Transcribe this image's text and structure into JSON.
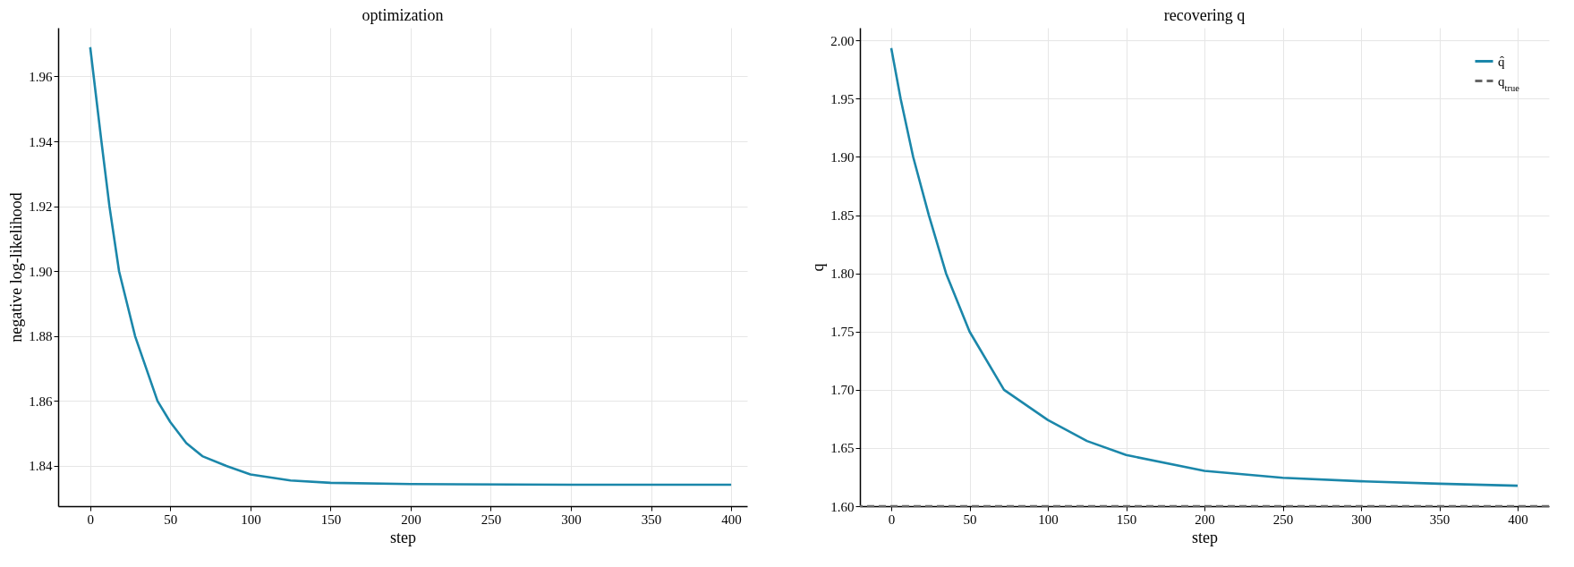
{
  "chart_data": [
    {
      "type": "line",
      "title": "optimization",
      "xlabel": "step",
      "ylabel": "negative log-likelihood",
      "x": [
        0,
        7,
        12,
        18,
        28,
        42,
        50,
        60,
        70,
        85,
        100,
        125,
        150,
        200,
        300,
        400
      ],
      "series": [
        {
          "color": "#1b87aa",
          "values": [
            1.969,
            1.94,
            1.92,
            1.9,
            1.88,
            1.86,
            1.8535,
            1.847,
            1.843,
            1.84,
            1.8374,
            1.8355,
            1.8348,
            1.8344,
            1.8342,
            1.8342
          ]
        }
      ],
      "xlim": [
        -20,
        410
      ],
      "xticks": [
        0,
        50,
        100,
        150,
        200,
        250,
        300,
        350,
        400
      ],
      "ylim": [
        1.8276,
        1.975
      ],
      "yticks": [
        1.84,
        1.86,
        1.88,
        {
          "value": 1.9,
          "label": "1.90"
        },
        1.92,
        1.94,
        1.96
      ],
      "grid": true,
      "legend": false
    },
    {
      "type": "line",
      "title": "recovering q",
      "xlabel": "step",
      "ylabel": "q",
      "x": [
        0,
        6,
        14,
        24,
        35,
        50,
        72,
        100,
        125,
        150,
        200,
        250,
        300,
        350,
        400
      ],
      "series": [
        {
          "name": "q̂",
          "color": "#1b87aa",
          "values": [
            1.9935,
            1.95,
            1.9,
            1.85,
            1.8,
            1.75,
            1.7,
            1.674,
            1.656,
            1.644,
            1.6304,
            1.6244,
            1.6214,
            1.6193,
            1.6176
          ]
        }
      ],
      "ref_lines": [
        {
          "axis": "y",
          "value": 1.6,
          "label": "q$_{true}$",
          "color": "#666666",
          "line_style": "dashed"
        }
      ],
      "xlim": [
        -20,
        420
      ],
      "xticks": [
        0,
        50,
        100,
        150,
        200,
        250,
        300,
        350,
        400
      ],
      "ylim": [
        1.6,
        2.011
      ],
      "yticks": [
        {
          "value": 1.6,
          "label": "1.60"
        },
        1.65,
        {
          "value": 1.7,
          "label": "1.70"
        },
        1.75,
        {
          "value": 1.8,
          "label": "1.80"
        },
        1.85,
        {
          "value": 1.9,
          "label": "1.90"
        },
        1.95,
        {
          "value": 2,
          "label": "2.00"
        }
      ],
      "grid": true,
      "legend": "top right"
    }
  ]
}
